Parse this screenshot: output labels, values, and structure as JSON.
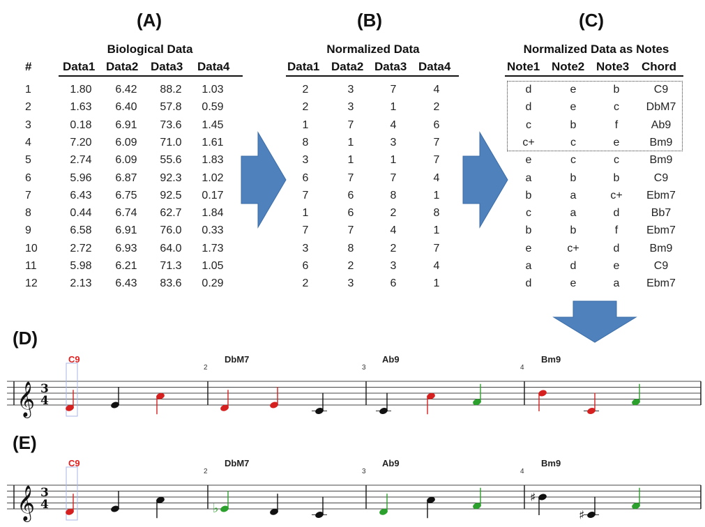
{
  "panels": {
    "A": "(A)",
    "B": "(B)",
    "C": "(C)",
    "D": "(D)",
    "E": "(E)"
  },
  "table_a": {
    "title": "Biological Data",
    "headers": [
      "#",
      "Data1",
      "Data2",
      "Data3",
      "Data4"
    ],
    "rows": [
      [
        "1",
        "1.80",
        "6.42",
        "88.2",
        "1.03"
      ],
      [
        "2",
        "1.63",
        "6.40",
        "57.8",
        "0.59"
      ],
      [
        "3",
        "0.18",
        "6.91",
        "73.6",
        "1.45"
      ],
      [
        "4",
        "7.20",
        "6.09",
        "71.0",
        "1.61"
      ],
      [
        "5",
        "2.74",
        "6.09",
        "55.6",
        "1.83"
      ],
      [
        "6",
        "5.96",
        "6.87",
        "92.3",
        "1.02"
      ],
      [
        "7",
        "6.43",
        "6.75",
        "92.5",
        "0.17"
      ],
      [
        "8",
        "0.44",
        "6.74",
        "62.7",
        "1.84"
      ],
      [
        "9",
        "6.58",
        "6.91",
        "76.0",
        "0.33"
      ],
      [
        "10",
        "2.72",
        "6.93",
        "64.0",
        "1.73"
      ],
      [
        "11",
        "5.98",
        "6.21",
        "71.3",
        "1.05"
      ],
      [
        "12",
        "2.13",
        "6.43",
        "83.6",
        "0.29"
      ]
    ]
  },
  "table_b": {
    "title": "Normalized Data",
    "headers": [
      "Data1",
      "Data2",
      "Data3",
      "Data4"
    ],
    "rows": [
      [
        "2",
        "3",
        "7",
        "4"
      ],
      [
        "2",
        "3",
        "1",
        "2"
      ],
      [
        "1",
        "7",
        "4",
        "6"
      ],
      [
        "8",
        "1",
        "3",
        "7"
      ],
      [
        "3",
        "1",
        "1",
        "7"
      ],
      [
        "6",
        "7",
        "7",
        "4"
      ],
      [
        "7",
        "6",
        "8",
        "1"
      ],
      [
        "1",
        "6",
        "2",
        "8"
      ],
      [
        "7",
        "7",
        "4",
        "1"
      ],
      [
        "3",
        "8",
        "2",
        "7"
      ],
      [
        "6",
        "2",
        "3",
        "4"
      ],
      [
        "2",
        "3",
        "6",
        "1"
      ]
    ]
  },
  "table_c": {
    "title": "Normalized Data as Notes",
    "headers": [
      "Note1",
      "Note2",
      "Note3",
      "Chord"
    ],
    "rows": [
      [
        "d",
        "e",
        "b",
        "C9"
      ],
      [
        "d",
        "e",
        "c",
        "DbM7"
      ],
      [
        "c",
        "b",
        "f",
        "Ab9"
      ],
      [
        "c+",
        "c",
        "e",
        "Bm9"
      ],
      [
        "e",
        "c",
        "c",
        "Bm9"
      ],
      [
        "a",
        "b",
        "b",
        "C9"
      ],
      [
        "b",
        "a",
        "c+",
        "Ebm7"
      ],
      [
        "c",
        "a",
        "d",
        "Bb7"
      ],
      [
        "b",
        "b",
        "f",
        "Ebm7"
      ],
      [
        "e",
        "c+",
        "d",
        "Bm9"
      ],
      [
        "a",
        "d",
        "e",
        "C9"
      ],
      [
        "d",
        "e",
        "a",
        "Ebm7"
      ]
    ]
  },
  "score_d": {
    "time_signature": [
      "3",
      "4"
    ],
    "measures": [
      {
        "number": "",
        "chord": "C9",
        "chord_color": "#e02020"
      },
      {
        "number": "2",
        "chord": "DbM7",
        "chord_color": "#222222"
      },
      {
        "number": "3",
        "chord": "Ab9",
        "chord_color": "#222222"
      },
      {
        "number": "4",
        "chord": "Bm9",
        "chord_color": "#222222"
      }
    ]
  },
  "score_e": {
    "time_signature": [
      "3",
      "4"
    ],
    "measures": [
      {
        "number": "",
        "chord": "C9",
        "chord_color": "#e02020"
      },
      {
        "number": "2",
        "chord": "DbM7",
        "chord_color": "#222222"
      },
      {
        "number": "3",
        "chord": "Ab9",
        "chord_color": "#222222"
      },
      {
        "number": "4",
        "chord": "Bm9",
        "chord_color": "#222222"
      }
    ]
  },
  "colors": {
    "arrow": "#4f81bd",
    "note_red": "#d62020",
    "note_green": "#2ca02c",
    "note_black": "#111111",
    "playhead": "#aab4e6"
  }
}
